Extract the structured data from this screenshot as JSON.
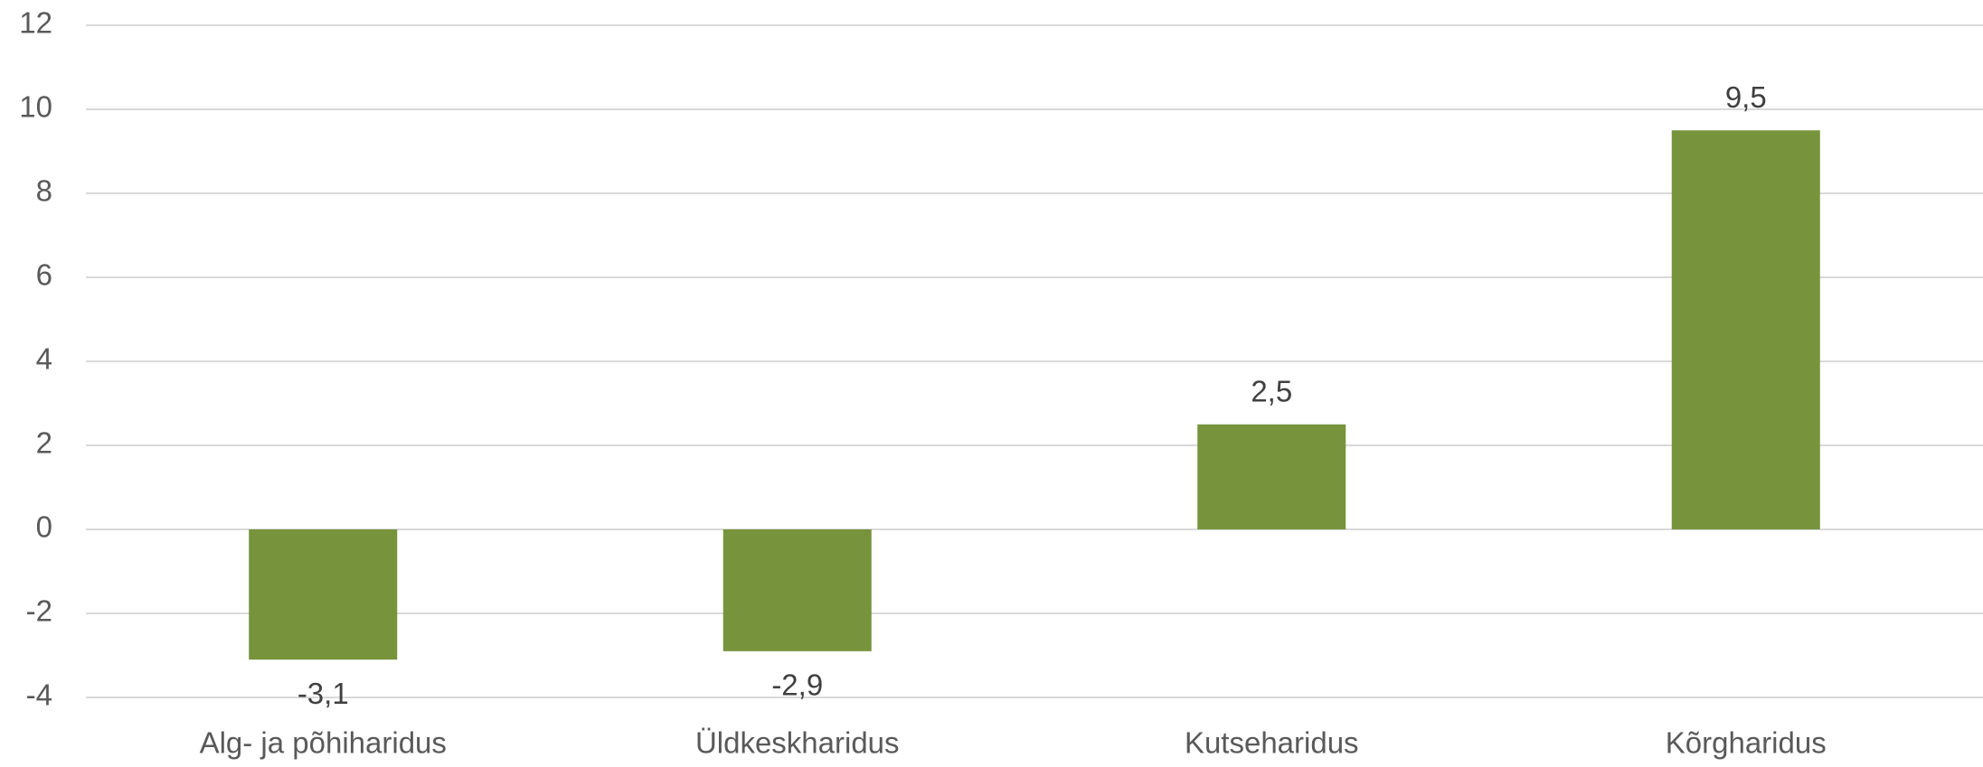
{
  "chart_data": {
    "type": "bar",
    "categories": [
      "Alg- ja põhiharidus",
      "Üldkeskharidus",
      "Kutseharidus",
      "Kõrgharidus"
    ],
    "values": [
      -3.1,
      -2.9,
      2.5,
      9.5
    ],
    "value_labels": [
      "-3,1",
      "-2,9",
      "2,5",
      "9,5"
    ],
    "color": "#77933c",
    "ylim": [
      -4,
      12
    ],
    "yticks": [
      -4,
      -2,
      0,
      2,
      4,
      6,
      8,
      10,
      12
    ],
    "grid": true
  }
}
